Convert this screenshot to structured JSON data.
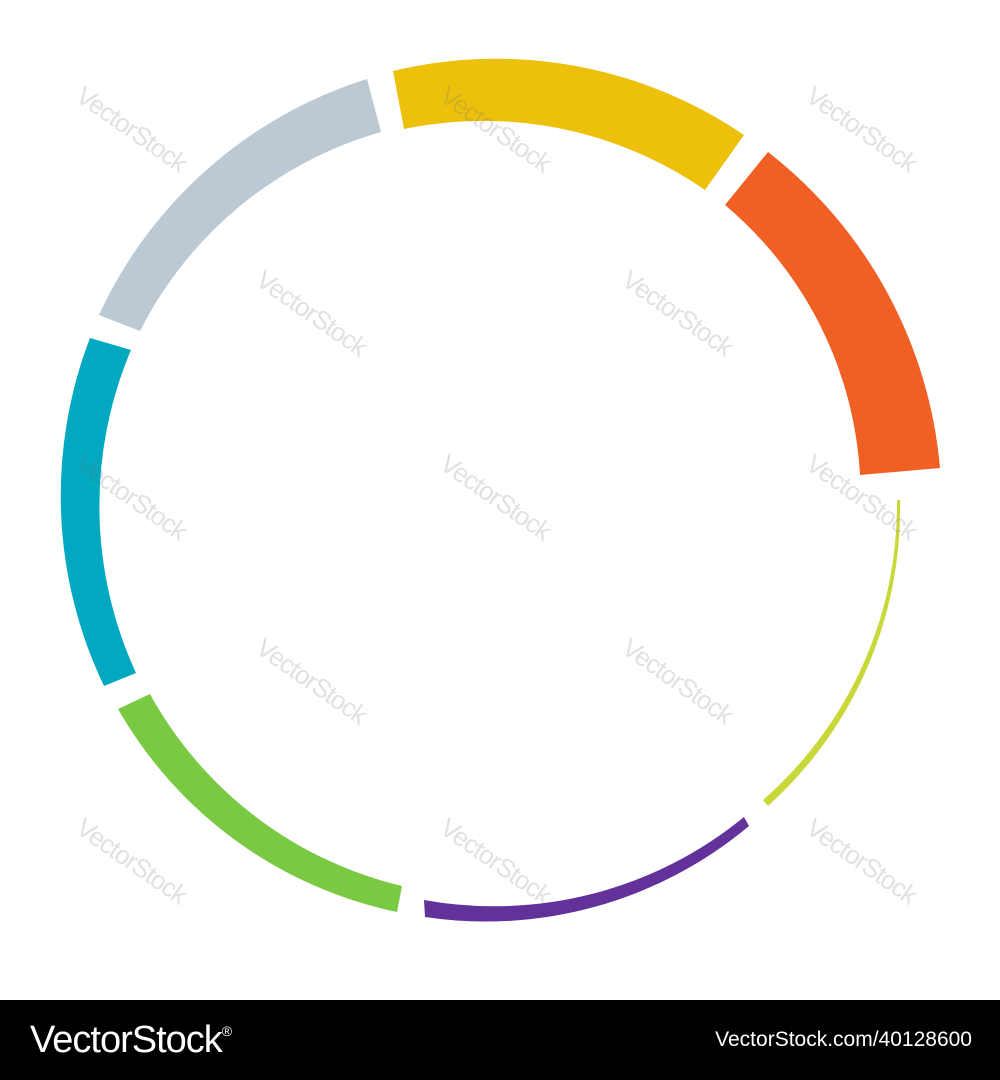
{
  "segments": [
    {
      "name": "gray-segment",
      "color": "#BCC8D2"
    },
    {
      "name": "yellow-segment",
      "color": "#EDC10B"
    },
    {
      "name": "orange-segment",
      "color": "#F06025"
    },
    {
      "name": "lime-segment",
      "color": "#C8D838"
    },
    {
      "name": "purple-segment",
      "color": "#63319A"
    },
    {
      "name": "green-segment",
      "color": "#7AC943"
    },
    {
      "name": "teal-segment",
      "color": "#00A9BF"
    }
  ],
  "watermark": {
    "text": "VectorStock"
  },
  "footer": {
    "logo_text": "VectorStock",
    "logo_mark": "®",
    "image_id": "VectorStock.com/40128600"
  }
}
